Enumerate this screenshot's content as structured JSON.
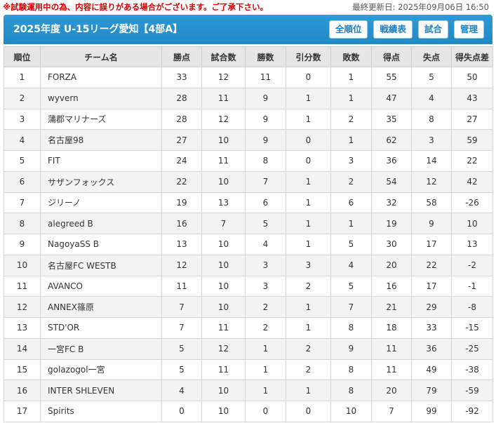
{
  "notice": "※試験運用中の為、内容に誤りがある場合がございます。ご了承下さい。",
  "updated": "最終更新日: 2025年09月06日 16:50",
  "header": {
    "title": "2025年度 U-15リーグ愛知【4部A】",
    "buttons": [
      "全順位",
      "戦績表",
      "試合",
      "管理"
    ]
  },
  "columns": [
    "順位",
    "チーム名",
    "勝点",
    "試合数",
    "勝数",
    "引分数",
    "敗数",
    "得点",
    "失点",
    "得失点差"
  ],
  "rows": [
    [
      "1",
      "FORZA",
      "33",
      "12",
      "11",
      "0",
      "1",
      "55",
      "5",
      "50"
    ],
    [
      "2",
      "wyvern",
      "28",
      "11",
      "9",
      "1",
      "1",
      "47",
      "4",
      "43"
    ],
    [
      "3",
      "蒲郡マリナーズ",
      "28",
      "12",
      "9",
      "1",
      "2",
      "35",
      "8",
      "27"
    ],
    [
      "4",
      "名古屋98",
      "27",
      "10",
      "9",
      "0",
      "1",
      "62",
      "3",
      "59"
    ],
    [
      "5",
      "FIT",
      "24",
      "11",
      "8",
      "0",
      "3",
      "36",
      "14",
      "22"
    ],
    [
      "6",
      "サザンフォックス",
      "22",
      "10",
      "7",
      "1",
      "2",
      "54",
      "12",
      "42"
    ],
    [
      "7",
      "ジリーノ",
      "19",
      "13",
      "6",
      "1",
      "6",
      "32",
      "58",
      "-26"
    ],
    [
      "8",
      "alegreed B",
      "16",
      "7",
      "5",
      "1",
      "1",
      "19",
      "9",
      "10"
    ],
    [
      "9",
      "NagoyaSS B",
      "13",
      "10",
      "4",
      "1",
      "5",
      "30",
      "17",
      "13"
    ],
    [
      "10",
      "名古屋FC WESTB",
      "12",
      "10",
      "3",
      "3",
      "4",
      "20",
      "22",
      "-2"
    ],
    [
      "11",
      "AVANCO",
      "11",
      "10",
      "3",
      "2",
      "5",
      "16",
      "17",
      "-1"
    ],
    [
      "12",
      "ANNEX篠原",
      "7",
      "10",
      "2",
      "1",
      "7",
      "21",
      "29",
      "-8"
    ],
    [
      "13",
      "STD'OR",
      "7",
      "11",
      "2",
      "1",
      "8",
      "18",
      "33",
      "-15"
    ],
    [
      "14",
      "一宮FC B",
      "5",
      "12",
      "1",
      "2",
      "9",
      "11",
      "36",
      "-25"
    ],
    [
      "15",
      "golazogol一宮",
      "5",
      "11",
      "1",
      "2",
      "8",
      "11",
      "49",
      "-38"
    ],
    [
      "16",
      "INTER SHLEVEN",
      "4",
      "10",
      "1",
      "1",
      "8",
      "20",
      "79",
      "-59"
    ],
    [
      "17",
      "Spirits",
      "0",
      "10",
      "0",
      "0",
      "10",
      "7",
      "99",
      "-92"
    ]
  ],
  "colors": {
    "header_blue": "#2187c4",
    "notice_red": "#d60000"
  }
}
